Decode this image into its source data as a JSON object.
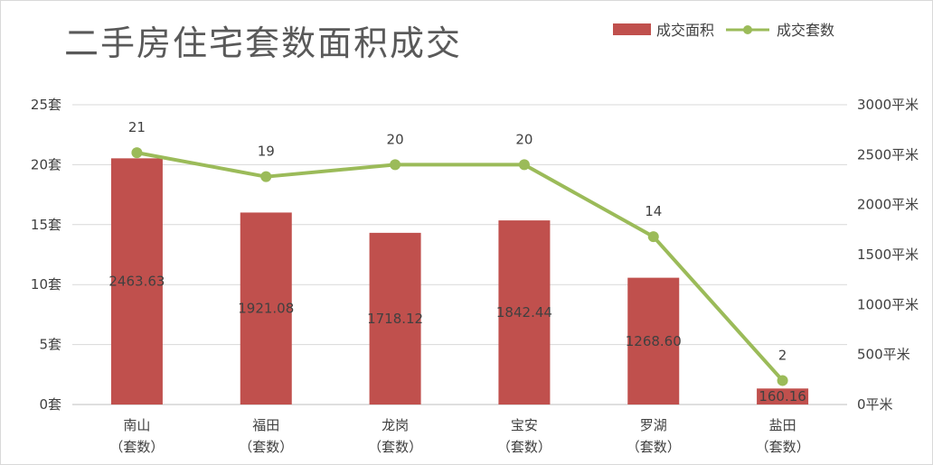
{
  "chart_data": {
    "type": "bar",
    "title": "二手房住宅套数面积成交",
    "categories": [
      [
        "南山",
        "（套数）"
      ],
      [
        "福田",
        "（套数）"
      ],
      [
        "龙岗",
        "（套数）"
      ],
      [
        "宝安",
        "（套数）"
      ],
      [
        "罗湖",
        "（套数）"
      ],
      [
        "盐田",
        "（套数）"
      ]
    ],
    "series": [
      {
        "name": "成交面积",
        "type": "bar",
        "axis": "right",
        "color": "#c0504d",
        "values": [
          2463.63,
          1921.08,
          1718.12,
          1842.44,
          1268.6,
          160.16
        ],
        "labels": [
          "2463.63",
          "1921.08",
          "1718.12",
          "1842.44",
          "1268.60",
          "160.16"
        ]
      },
      {
        "name": "成交套数",
        "type": "line",
        "axis": "left",
        "color": "#9bbb59",
        "values": [
          21,
          19,
          20,
          20,
          14,
          2
        ],
        "labels": [
          "21",
          "19",
          "20",
          "20",
          "14",
          "2"
        ]
      }
    ],
    "left_axis": {
      "ylim": [
        0,
        25
      ],
      "ticks": [
        0,
        5,
        10,
        15,
        20,
        25
      ],
      "tick_labels": [
        "0套",
        "5套",
        "10套",
        "15套",
        "20套",
        "25套"
      ]
    },
    "right_axis": {
      "ylim": [
        0,
        3000
      ],
      "ticks": [
        0,
        500,
        1000,
        1500,
        2000,
        2500,
        3000
      ],
      "tick_labels": [
        "0平米",
        "500平米",
        "1000平米",
        "1500平米",
        "2000平米",
        "2500平米",
        "3000平米"
      ]
    },
    "grid": true,
    "legend_position": "top-right"
  }
}
